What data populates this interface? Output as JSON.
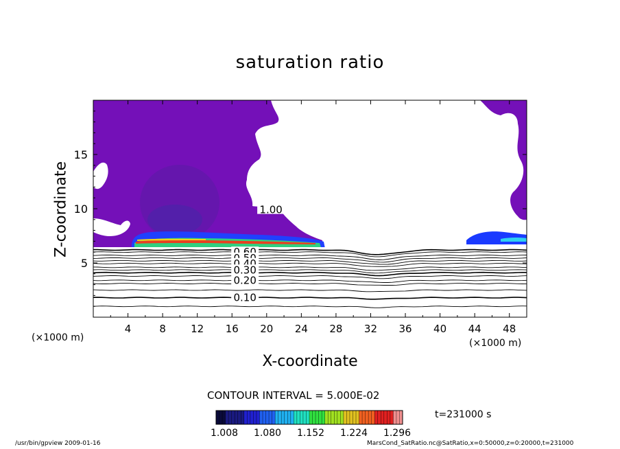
{
  "chart_data": {
    "type": "contour",
    "title": "saturation ratio",
    "xlabel": "X-coordinate",
    "ylabel": "Z-coordinate",
    "x_unit": "(×1000 m)",
    "y_unit": "(×1000 m)",
    "xlim": [
      0,
      50
    ],
    "ylim": [
      0,
      20
    ],
    "x_ticks": [
      4,
      8,
      12,
      16,
      20,
      24,
      28,
      32,
      36,
      40,
      44,
      48
    ],
    "y_ticks": [
      5,
      10,
      15
    ],
    "contour_labels": [
      {
        "text": "1.00",
        "x": 20.5,
        "z": 9.9
      },
      {
        "text": "0.60",
        "x": 17.5,
        "z": 6.0
      },
      {
        "text": "0.50",
        "x": 17.5,
        "z": 5.45
      },
      {
        "text": "0.40",
        "x": 17.5,
        "z": 4.95
      },
      {
        "text": "0.30",
        "x": 17.5,
        "z": 4.35
      },
      {
        "text": "0.20",
        "x": 17.5,
        "z": 3.4
      },
      {
        "text": "0.10",
        "x": 17.5,
        "z": 1.8
      }
    ],
    "contour_levels_z": [
      1.0,
      1.8,
      2.5,
      3.1,
      3.4,
      3.8,
      4.1,
      4.35,
      4.6,
      4.95,
      5.2,
      5.45,
      5.7,
      6.0,
      6.2
    ],
    "contour_interval": "CONTOUR INTERVAL = 5.000E-02",
    "colorbar": {
      "ticks": [
        "1.008",
        "1.080",
        "1.152",
        "1.224",
        "1.296"
      ],
      "colors": [
        "#0a0a3a",
        "#1a1a80",
        "#2020d0",
        "#2060f0",
        "#20b0f0",
        "#20e0c0",
        "#30e040",
        "#a0e020",
        "#e0c020",
        "#f06020",
        "#e02020",
        "#f09090"
      ]
    },
    "time_label": "t=231000 s",
    "colors": {
      "saturated": "#7410b8",
      "saturated_dark": "#5a1aa8",
      "cloud_base": "#e84020",
      "cloud_base_mid": "#30d080",
      "cloud_edge_blue": "#1a3aff"
    }
  },
  "footer": {
    "left": "/usr/bin/gpview   2009-01-16",
    "right": "MarsCond_SatRatio.nc@SatRatio,x=0:50000,z=0:20000,t=231000"
  }
}
